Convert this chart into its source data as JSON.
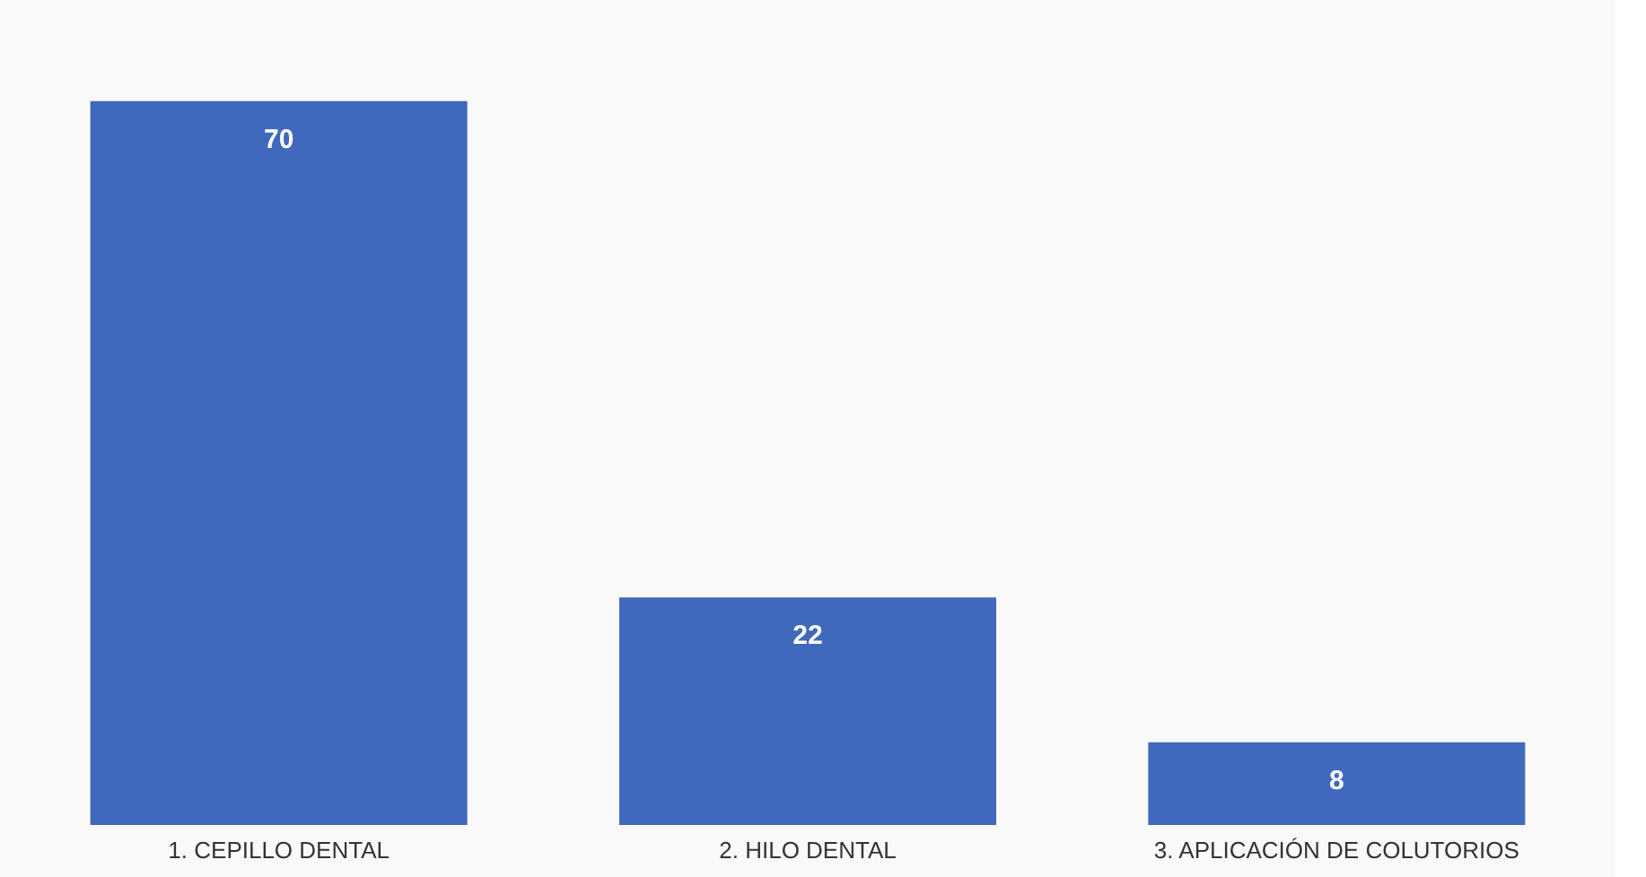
{
  "chart_data": {
    "type": "bar",
    "categories": [
      "1. CEPILLO DENTAL",
      "2. HILO DENTAL",
      "3. APLICACIÓN DE COLUTORIOS"
    ],
    "values": [
      70,
      22,
      8
    ],
    "color": "#4069bd",
    "data_labels": true
  }
}
